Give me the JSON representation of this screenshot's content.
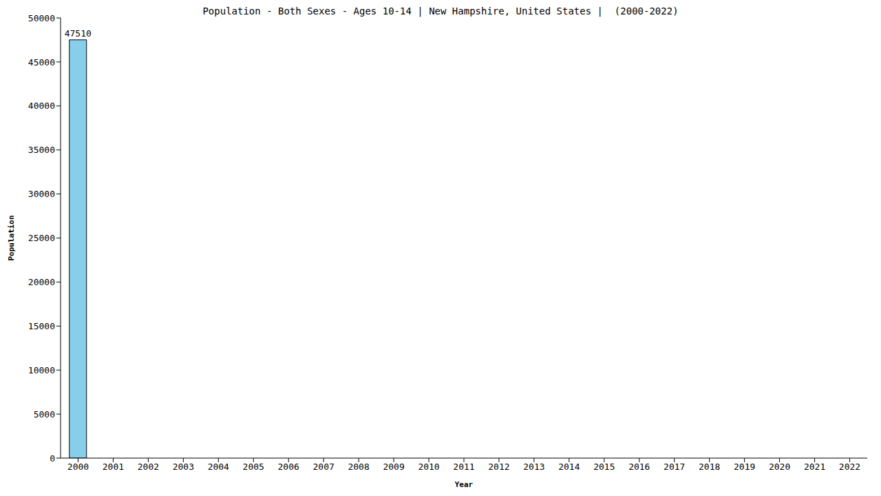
{
  "chart_data": {
    "type": "bar",
    "title": "Population - Both Sexes - Ages 10-14 | New Hampshire, United States |  (2000-2022)",
    "x_label": "Year",
    "y_label": "Population",
    "categories": [
      "2000",
      "2001",
      "2002",
      "2003",
      "2004",
      "2005",
      "2006",
      "2007",
      "2008",
      "2009",
      "2010",
      "2011",
      "2012",
      "2013",
      "2014",
      "2015",
      "2016",
      "2017",
      "2018",
      "2019",
      "2020",
      "2021",
      "2022"
    ],
    "values": [
      47510,
      0,
      0,
      0,
      0,
      0,
      0,
      0,
      0,
      0,
      0,
      0,
      0,
      0,
      0,
      0,
      0,
      0,
      0,
      0,
      0,
      0,
      0
    ],
    "color": "#87ceeb",
    "ylim": [
      0,
      50000
    ],
    "yticks": [
      0,
      5000,
      10000,
      15000,
      20000,
      25000,
      30000,
      35000,
      40000,
      45000,
      50000
    ],
    "grid": false,
    "data_labels": true
  }
}
